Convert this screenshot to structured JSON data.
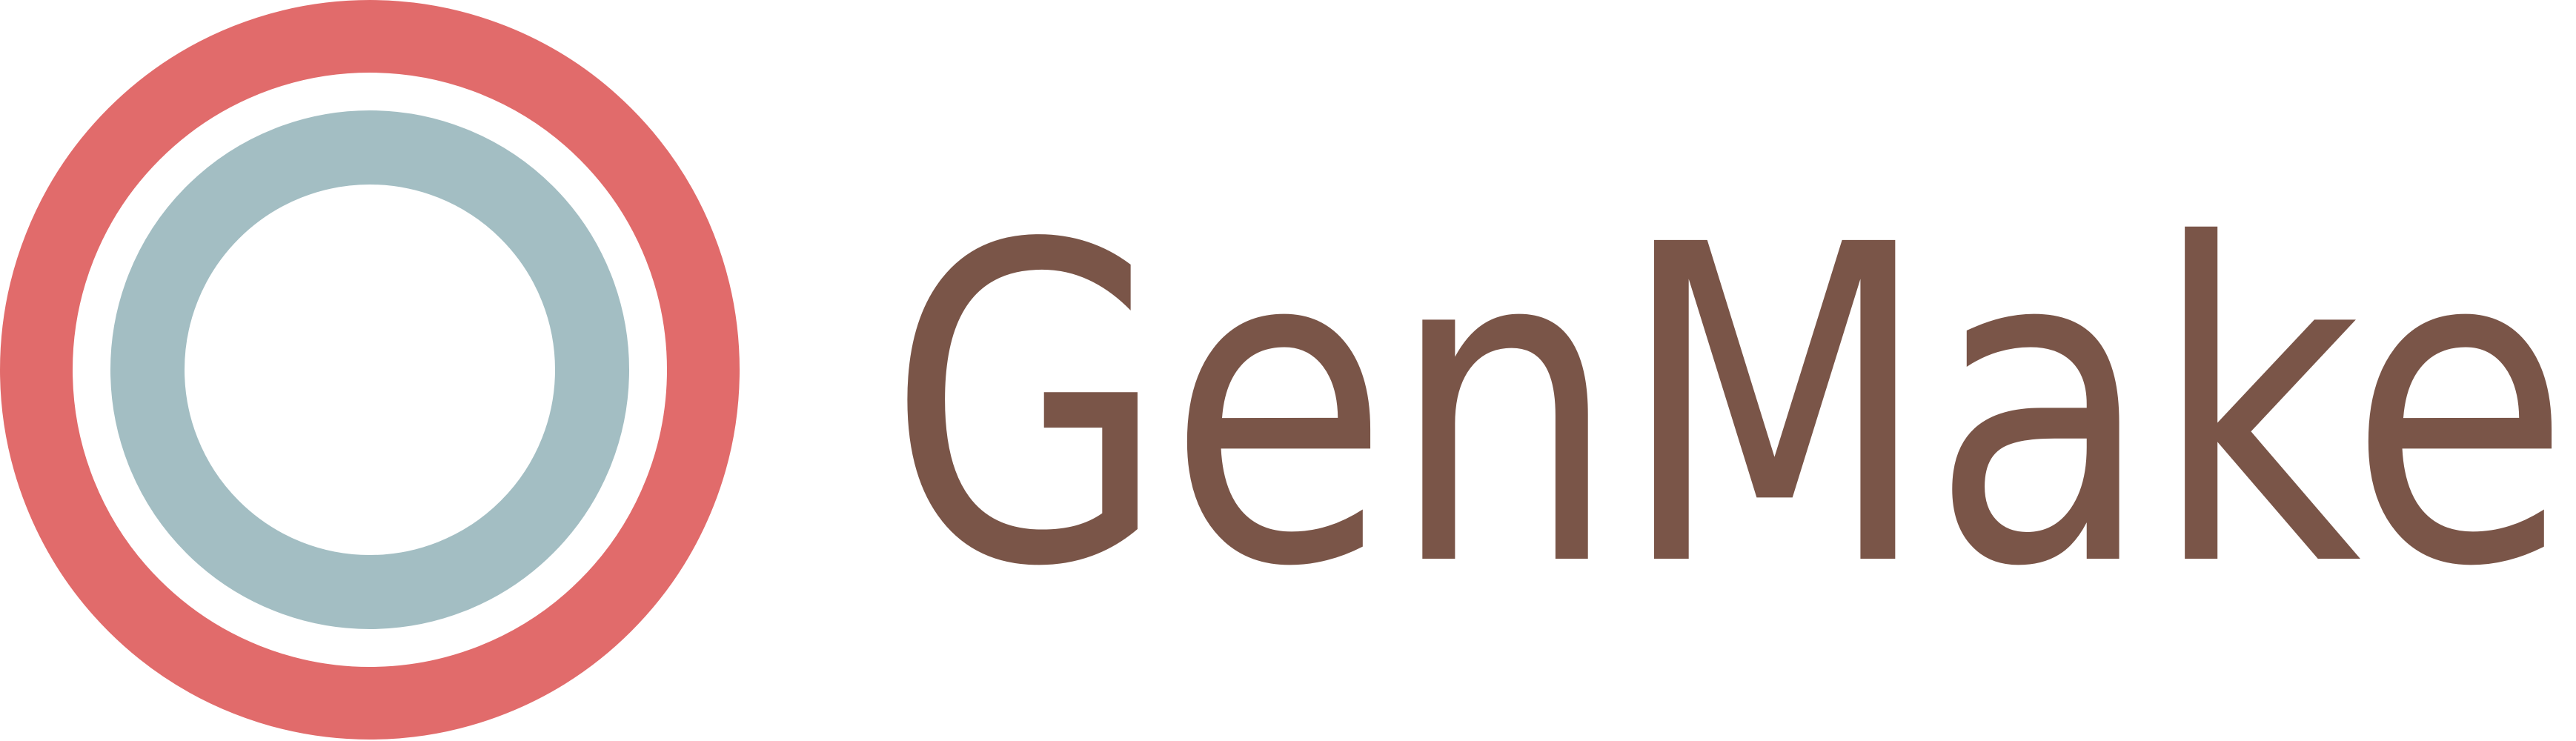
{
  "logo": {
    "text": "GenMake"
  }
}
